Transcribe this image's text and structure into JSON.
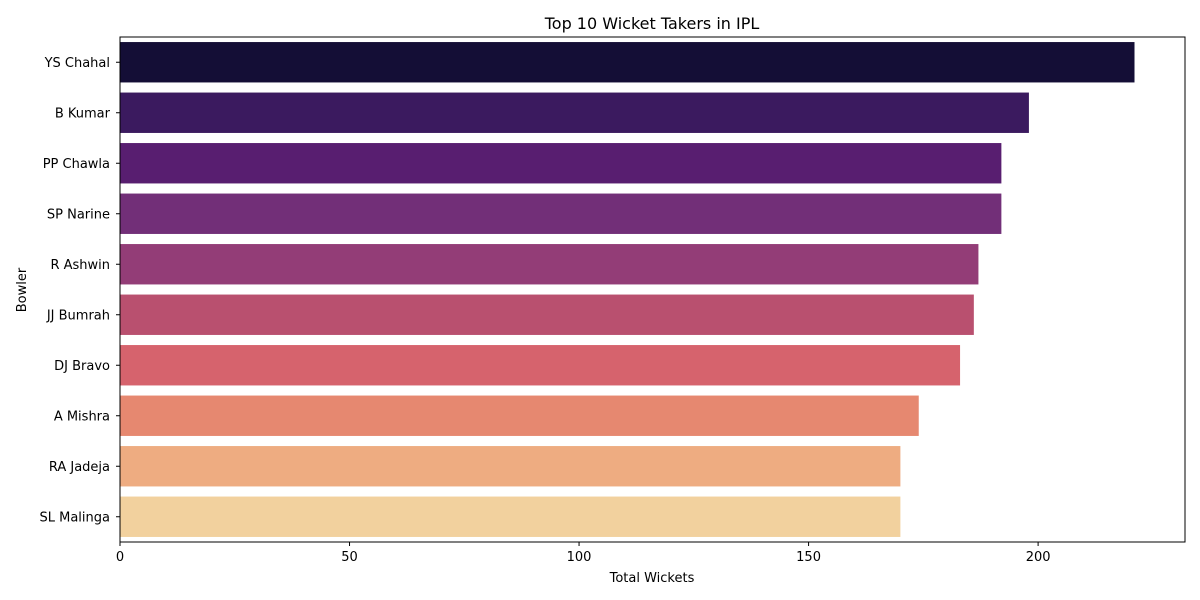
{
  "chart_data": {
    "type": "bar",
    "orientation": "horizontal",
    "title": "Top 10 Wicket Takers in IPL",
    "xlabel": "Total Wickets",
    "ylabel": "Bowler",
    "categories": [
      "YS Chahal",
      "B Kumar",
      "PP Chawla",
      "SP Narine",
      "R Ashwin",
      "JJ Bumrah",
      "DJ Bravo",
      "A Mishra",
      "RA Jadeja",
      "SL Malinga"
    ],
    "values": [
      221,
      198,
      192,
      192,
      187,
      186,
      183,
      174,
      170,
      170
    ],
    "colors": [
      "#140e36",
      "#3b1a5f",
      "#581e70",
      "#722f78",
      "#933d77",
      "#b9506f",
      "#d6636d",
      "#e68870",
      "#eeac81",
      "#f2d19e"
    ],
    "xlim": [
      0,
      232
    ],
    "xticks": [
      0,
      50,
      100,
      150,
      200
    ],
    "grid": false
  }
}
